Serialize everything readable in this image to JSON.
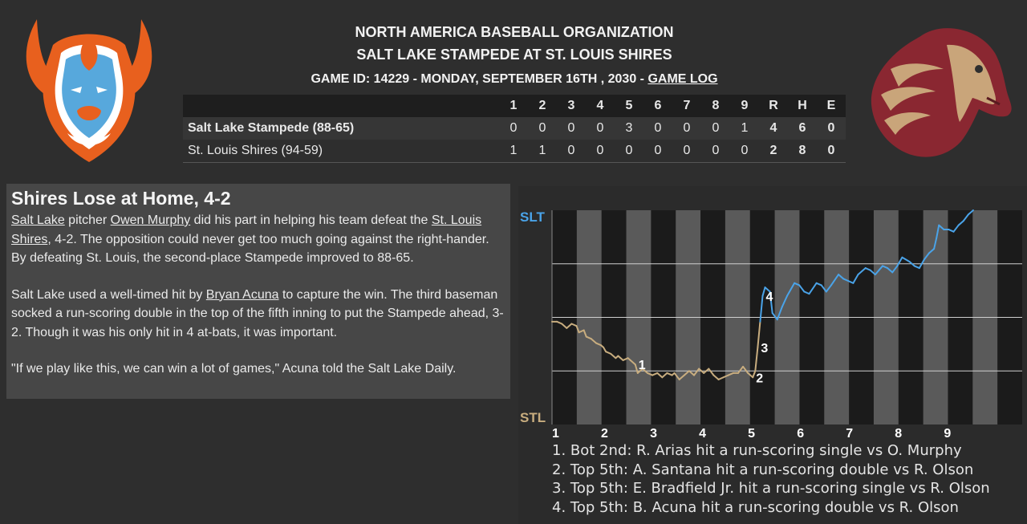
{
  "header": {
    "league": "NORTH AMERICA BASEBALL ORGANIZATION",
    "matchup": "SALT LAKE STAMPEDE AT ST. LOUIS SHIRES",
    "game_info": "GAME ID: 14229 - MONDAY, SEPTEMBER 16TH , 2030 - ",
    "game_log_link": "GAME LOG"
  },
  "linescore": {
    "headers": [
      "1",
      "2",
      "3",
      "4",
      "5",
      "6",
      "7",
      "8",
      "9",
      "R",
      "H",
      "E"
    ],
    "teams": [
      {
        "name": "Salt Lake Stampede (88-65)",
        "innings": [
          "0",
          "0",
          "0",
          "0",
          "3",
          "0",
          "0",
          "0",
          "1"
        ],
        "r": "4",
        "h": "6",
        "e": "0"
      },
      {
        "name": "St. Louis Shires (94-59)",
        "innings": [
          "1",
          "1",
          "0",
          "0",
          "0",
          "0",
          "0",
          "0",
          "0"
        ],
        "r": "2",
        "h": "8",
        "e": "0"
      }
    ]
  },
  "story": {
    "headline": "Shires Lose at Home, 4-2",
    "p1": [
      {
        "t": "Salt Lake",
        "link": true
      },
      {
        "t": " pitcher "
      },
      {
        "t": "Owen Murphy",
        "link": true
      },
      {
        "t": " did his part in helping his team defeat the "
      },
      {
        "t": "St. Louis Shires",
        "link": true
      },
      {
        "t": ", 4-2. The opposition could never get too much going against the right-hander. By defeating St. Louis, the second-place Stampede improved to 88-65."
      }
    ],
    "p2": [
      {
        "t": "Salt Lake used a well-timed hit by "
      },
      {
        "t": "Bryan Acuna",
        "link": true
      },
      {
        "t": " to capture the win. The third baseman socked a run-scoring double in the top of the fifth inning to put the Stampede ahead, 3-2. Though it was his only hit in 4 at-bats, it was important."
      }
    ],
    "p3": [
      {
        "t": "\"If we play like this, we can win a lot of games,\" Acuna told the Salt Lake Daily."
      }
    ]
  },
  "colors": {
    "away": "#4aa3e8",
    "home": "#c8ad7f",
    "stl_label": "#c8ad7f",
    "slt_label": "#4aa3e8"
  },
  "chart_data": {
    "type": "line",
    "title": "",
    "top_label": "SLT",
    "bottom_label": "STL",
    "ylim": [
      0,
      1
    ],
    "inning_labels": [
      "1",
      "2",
      "3",
      "4",
      "5",
      "6",
      "7",
      "8",
      "9"
    ],
    "inning_starts": [
      0,
      1,
      2,
      3,
      4,
      5,
      6,
      7,
      8
    ],
    "x_total": 9.6,
    "series": [
      {
        "points": [
          [
            0,
            0.48
          ],
          [
            0.1,
            0.48
          ],
          [
            0.2,
            0.47
          ],
          [
            0.3,
            0.45
          ],
          [
            0.4,
            0.47
          ],
          [
            0.5,
            0.46
          ],
          [
            0.55,
            0.43
          ],
          [
            0.65,
            0.44
          ],
          [
            0.7,
            0.41
          ],
          [
            0.8,
            0.4
          ],
          [
            0.9,
            0.38
          ],
          [
            1.0,
            0.37
          ],
          [
            1.05,
            0.36
          ],
          [
            1.1,
            0.34
          ],
          [
            1.2,
            0.33
          ],
          [
            1.3,
            0.31
          ],
          [
            1.35,
            0.32
          ],
          [
            1.45,
            0.3
          ],
          [
            1.55,
            0.31
          ],
          [
            1.6,
            0.3
          ],
          [
            1.7,
            0.28
          ],
          [
            1.75,
            0.24
          ],
          [
            1.85,
            0.26
          ],
          [
            1.95,
            0.24
          ],
          [
            2.05,
            0.23
          ],
          [
            2.15,
            0.24
          ],
          [
            2.25,
            0.22
          ],
          [
            2.35,
            0.24
          ],
          [
            2.45,
            0.23
          ],
          [
            2.5,
            0.24
          ],
          [
            2.6,
            0.21
          ],
          [
            2.7,
            0.23
          ],
          [
            2.8,
            0.25
          ],
          [
            2.9,
            0.23
          ],
          [
            3.0,
            0.26
          ],
          [
            3.1,
            0.24
          ],
          [
            3.2,
            0.26
          ],
          [
            3.3,
            0.23
          ],
          [
            3.4,
            0.21
          ],
          [
            3.5,
            0.22
          ],
          [
            3.6,
            0.23
          ],
          [
            3.7,
            0.24
          ],
          [
            3.8,
            0.24
          ],
          [
            3.9,
            0.27
          ],
          [
            4.0,
            0.24
          ],
          [
            4.1,
            0.22
          ],
          [
            4.15,
            0.25
          ],
          [
            4.2,
            0.36
          ],
          [
            4.25,
            0.48
          ],
          [
            4.3,
            0.6
          ],
          [
            4.35,
            0.64
          ],
          [
            4.45,
            0.62
          ],
          [
            4.5,
            0.52
          ],
          [
            4.6,
            0.49
          ],
          [
            4.7,
            0.55
          ],
          [
            4.8,
            0.6
          ],
          [
            4.95,
            0.66
          ],
          [
            5.05,
            0.65
          ],
          [
            5.15,
            0.62
          ],
          [
            5.25,
            0.61
          ],
          [
            5.4,
            0.66
          ],
          [
            5.5,
            0.65
          ],
          [
            5.6,
            0.62
          ],
          [
            5.7,
            0.65
          ],
          [
            5.85,
            0.7
          ],
          [
            5.95,
            0.68
          ],
          [
            6.05,
            0.67
          ],
          [
            6.15,
            0.66
          ],
          [
            6.25,
            0.7
          ],
          [
            6.4,
            0.73
          ],
          [
            6.5,
            0.72
          ],
          [
            6.6,
            0.7
          ],
          [
            6.75,
            0.74
          ],
          [
            6.85,
            0.73
          ],
          [
            6.95,
            0.71
          ],
          [
            7.05,
            0.74
          ],
          [
            7.15,
            0.78
          ],
          [
            7.3,
            0.76
          ],
          [
            7.4,
            0.74
          ],
          [
            7.5,
            0.73
          ],
          [
            7.6,
            0.77
          ],
          [
            7.7,
            0.8
          ],
          [
            7.8,
            0.82
          ],
          [
            7.85,
            0.87
          ],
          [
            7.9,
            0.93
          ],
          [
            8.0,
            0.91
          ],
          [
            8.1,
            0.91
          ],
          [
            8.2,
            0.9
          ],
          [
            8.3,
            0.93
          ],
          [
            8.4,
            0.95
          ],
          [
            8.5,
            0.98
          ],
          [
            8.6,
            1.0
          ]
        ]
      }
    ],
    "annotations": [
      {
        "label": "1",
        "x": 1.7
      },
      {
        "label": "2",
        "x": 4.1
      },
      {
        "label": "3",
        "x": 4.2
      },
      {
        "label": "4",
        "x": 4.3
      }
    ]
  },
  "events": [
    "1. Bot 2nd: R. Arias hit a run-scoring single vs O. Murphy",
    "2. Top 5th: A. Santana hit a run-scoring double vs R. Olson",
    "3. Top 5th: E. Bradfield Jr. hit a run-scoring single vs R. Olson",
    "4. Top 5th: B. Acuna hit a run-scoring double vs R. Olson"
  ]
}
